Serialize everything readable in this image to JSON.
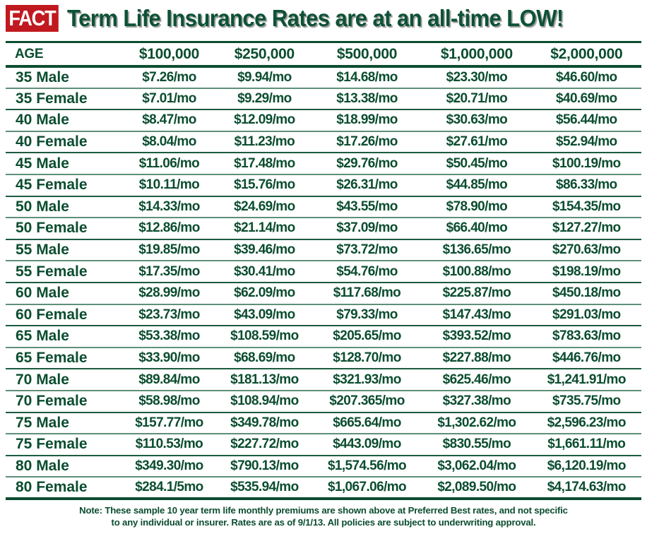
{
  "header": {
    "badge": "FACT",
    "headline": "Term Life Insurance Rates are at an all-time LOW!",
    "colors": {
      "badge_bg": "#c0191f",
      "badge_text": "#ffffff",
      "primary_green": "#0b4d30"
    }
  },
  "table": {
    "columns": [
      "AGE",
      "$100,000",
      "$250,000",
      "$500,000",
      "$1,000,000",
      "$2,000,000"
    ],
    "rows": [
      {
        "age": "35 Male",
        "rates": [
          "$7.26/mo",
          "$9.94/mo",
          "$14.68/mo",
          "$23.30/mo",
          "$46.60/mo"
        ]
      },
      {
        "age": "35 Female",
        "rates": [
          "$7.01/mo",
          "$9.29/mo",
          "$13.38/mo",
          "$20.71/mo",
          "$40.69/mo"
        ]
      },
      {
        "age": "40 Male",
        "rates": [
          "$8.47/mo",
          "$12.09/mo",
          "$18.99/mo",
          "$30.63/mo",
          "$56.44/mo"
        ]
      },
      {
        "age": "40 Female",
        "rates": [
          "$8.04/mo",
          "$11.23/mo",
          "$17.26/mo",
          "$27.61/mo",
          "$52.94/mo"
        ]
      },
      {
        "age": "45 Male",
        "rates": [
          "$11.06/mo",
          "$17.48/mo",
          "$29.76/mo",
          "$50.45/mo",
          "$100.19/mo"
        ]
      },
      {
        "age": "45 Female",
        "rates": [
          "$10.11/mo",
          "$15.76/mo",
          "$26.31/mo",
          "$44.85/mo",
          "$86.33/mo"
        ]
      },
      {
        "age": "50 Male",
        "rates": [
          "$14.33/mo",
          "$24.69/mo",
          "$43.55/mo",
          "$78.90/mo",
          "$154.35/mo"
        ]
      },
      {
        "age": "50 Female",
        "rates": [
          "$12.86/mo",
          "$21.14/mo",
          "$37.09/mo",
          "$66.40/mo",
          "$127.27/mo"
        ]
      },
      {
        "age": "55 Male",
        "rates": [
          "$19.85/mo",
          "$39.46/mo",
          "$73.72/mo",
          "$136.65/mo",
          "$270.63/mo"
        ]
      },
      {
        "age": "55 Female",
        "rates": [
          "$17.35/mo",
          "$30.41/mo",
          "$54.76/mo",
          "$100.88/mo",
          "$198.19/mo"
        ]
      },
      {
        "age": "60 Male",
        "rates": [
          "$28.99/mo",
          "$62.09/mo",
          "$117.68/mo",
          "$225.87/mo",
          "$450.18/mo"
        ]
      },
      {
        "age": "60 Female",
        "rates": [
          "$23.73/mo",
          "$43.09/mo",
          "$79.33/mo",
          "$147.43/mo",
          "$291.03/mo"
        ]
      },
      {
        "age": "65 Male",
        "rates": [
          "$53.38/mo",
          "$108.59/mo",
          "$205.65/mo",
          "$393.52/mo",
          "$783.63/mo"
        ]
      },
      {
        "age": "65 Female",
        "rates": [
          "$33.90/mo",
          "$68.69/mo",
          "$128.70/mo",
          "$227.88/mo",
          "$446.76/mo"
        ]
      },
      {
        "age": "70 Male",
        "rates": [
          "$89.84/mo",
          "$181.13/mo",
          "$321.93/mo",
          "$625.46/mo",
          "$1,241.91/mo"
        ]
      },
      {
        "age": "70 Female",
        "rates": [
          "$58.98/mo",
          "$108.94/mo",
          "$207.365/mo",
          "$327.38/mo",
          "$735.75/mo"
        ]
      },
      {
        "age": "75 Male",
        "rates": [
          "$157.77/mo",
          "$349.78/mo",
          "$665.64/mo",
          "$1,302.62/mo",
          "$2,596.23/mo"
        ]
      },
      {
        "age": "75 Female",
        "rates": [
          "$110.53/mo",
          "$227.72/mo",
          "$443.09/mo",
          "$830.55/mo",
          "$1,661.11/mo"
        ]
      },
      {
        "age": "80 Male",
        "rates": [
          "$349.30/mo",
          "$790.13/mo",
          "$1,574.56/mo",
          "$3,062.04/mo",
          "$6,120.19/mo"
        ]
      },
      {
        "age": "80 Female",
        "rates": [
          "$284.1/5mo",
          "$535.94/mo",
          "$1,067.06/mo",
          "$2,089.50/mo",
          "$4,174.63/mo"
        ]
      }
    ]
  },
  "footer": {
    "note_line1": "Note: These sample 10 year term life monthly premiums are shown above at Preferred Best rates, and not specific",
    "note_line2": "to any individual or insurer. Rates are as of 9/1/13. All policies are subject to underwriting approval."
  }
}
